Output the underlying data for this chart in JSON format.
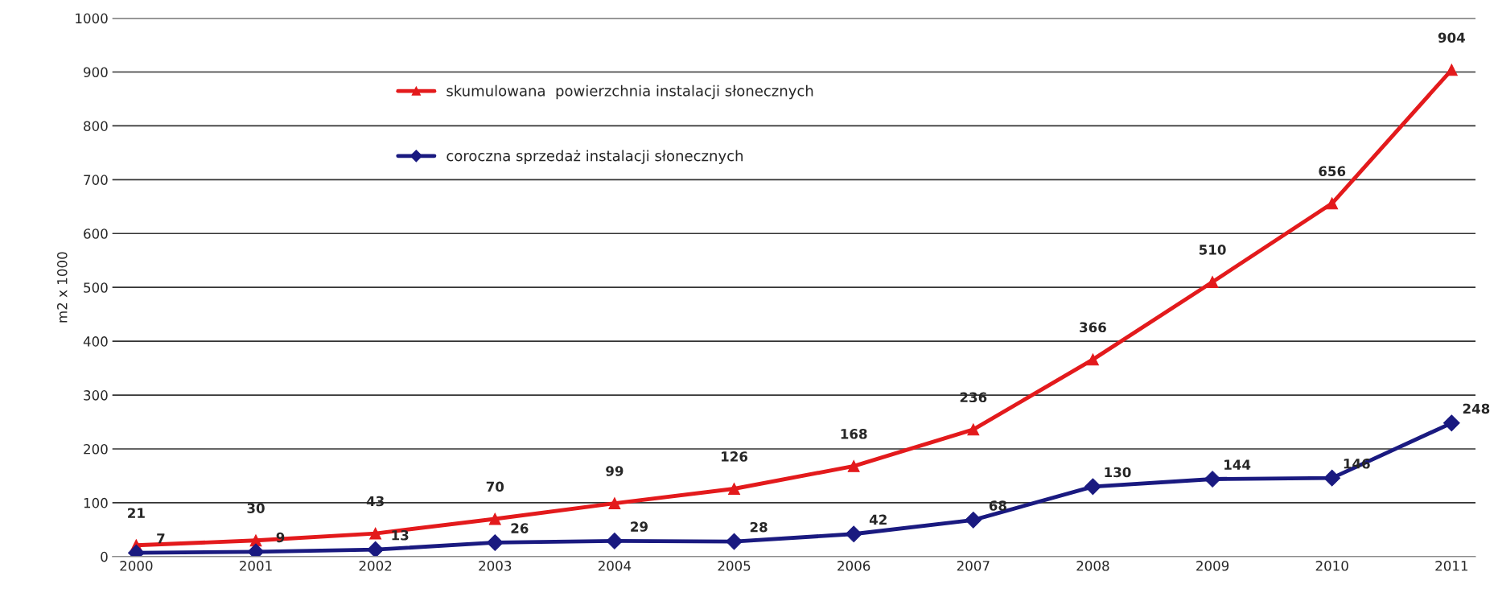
{
  "chart_data": {
    "type": "line",
    "ylabel": "m2 x 1000",
    "categories": [
      "2000",
      "2001",
      "2002",
      "2003",
      "2004",
      "2005",
      "2006",
      "2007",
      "2008",
      "2009",
      "2010",
      "2011"
    ],
    "series": [
      {
        "name": "skumulowana  powierzchnia instalacji słonecznych",
        "color": "#e31a1c",
        "marker": "triangle",
        "values": [
          21,
          30,
          43,
          70,
          99,
          126,
          168,
          236,
          366,
          510,
          656,
          904
        ]
      },
      {
        "name": "coroczna sprzedaż instalacji słonecznych",
        "color": "#1a1a80",
        "marker": "diamond",
        "values": [
          7,
          9,
          13,
          26,
          29,
          28,
          42,
          68,
          130,
          144,
          146,
          248
        ]
      }
    ],
    "ylim": [
      0,
      1000
    ],
    "yticks": [
      0,
      100,
      200,
      300,
      400,
      500,
      600,
      700,
      800,
      900,
      1000
    ],
    "grid": "y",
    "legend": "top left",
    "data_labels": true,
    "line_style": "solid"
  }
}
